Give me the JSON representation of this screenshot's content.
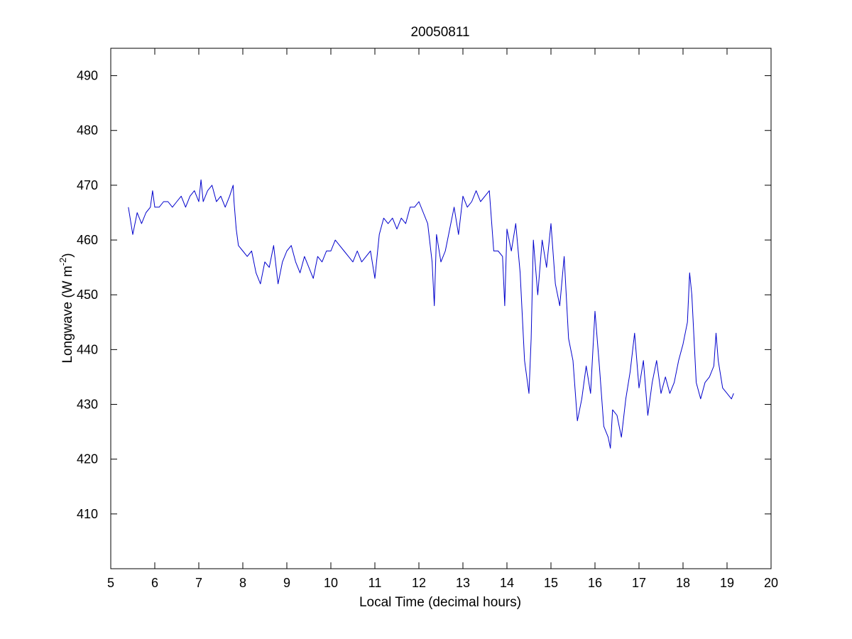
{
  "chart_data": {
    "type": "line",
    "title": "20050811",
    "xlabel": "Local Time (decimal hours)",
    "ylabel": {
      "text": "Longwave (W m",
      "superscript": "-2",
      "suffix": ")"
    },
    "xlim": [
      5,
      20
    ],
    "ylim": [
      400,
      495
    ],
    "xticks": [
      5,
      6,
      7,
      8,
      9,
      10,
      11,
      12,
      13,
      14,
      15,
      16,
      17,
      18,
      19,
      20
    ],
    "yticks": [
      410,
      420,
      430,
      440,
      450,
      460,
      470,
      480,
      490
    ],
    "grid": false,
    "legend": "none",
    "series": [
      {
        "color": "#0000cc",
        "x": [
          5.4,
          5.5,
          5.6,
          5.7,
          5.8,
          5.9,
          5.95,
          6.0,
          6.1,
          6.2,
          6.3,
          6.4,
          6.5,
          6.6,
          6.7,
          6.8,
          6.9,
          7.0,
          7.05,
          7.1,
          7.2,
          7.3,
          7.4,
          7.5,
          7.6,
          7.7,
          7.78,
          7.8,
          7.85,
          7.9,
          8.0,
          8.1,
          8.2,
          8.3,
          8.4,
          8.5,
          8.6,
          8.7,
          8.8,
          8.9,
          9.0,
          9.1,
          9.2,
          9.3,
          9.4,
          9.5,
          9.6,
          9.7,
          9.8,
          9.9,
          10.0,
          10.1,
          10.2,
          10.3,
          10.4,
          10.5,
          10.6,
          10.7,
          10.8,
          10.9,
          11.0,
          11.1,
          11.2,
          11.3,
          11.4,
          11.5,
          11.6,
          11.7,
          11.8,
          11.9,
          12.0,
          12.1,
          12.2,
          12.3,
          12.35,
          12.4,
          12.5,
          12.6,
          12.7,
          12.8,
          12.9,
          13.0,
          13.1,
          13.2,
          13.3,
          13.4,
          13.5,
          13.6,
          13.7,
          13.8,
          13.9,
          13.95,
          14.0,
          14.1,
          14.2,
          14.3,
          14.4,
          14.5,
          14.55,
          14.6,
          14.7,
          14.8,
          14.9,
          15.0,
          15.1,
          15.2,
          15.3,
          15.4,
          15.5,
          15.6,
          15.7,
          15.8,
          15.9,
          16.0,
          16.1,
          16.2,
          16.3,
          16.35,
          16.4,
          16.5,
          16.6,
          16.7,
          16.8,
          16.9,
          17.0,
          17.1,
          17.2,
          17.3,
          17.4,
          17.5,
          17.6,
          17.7,
          17.8,
          17.9,
          18.0,
          18.1,
          18.15,
          18.2,
          18.3,
          18.4,
          18.5,
          18.6,
          18.7,
          18.75,
          18.8,
          18.9,
          19.0,
          19.1,
          19.15
        ],
        "y": [
          466,
          461,
          465,
          463,
          465,
          466,
          469,
          466,
          466,
          467,
          467,
          466,
          467,
          468,
          466,
          468,
          469,
          467,
          471,
          467,
          469,
          470,
          467,
          468,
          466,
          468,
          470,
          467,
          462,
          459,
          458,
          457,
          458,
          454,
          452,
          456,
          455,
          459,
          452,
          456,
          458,
          459,
          456,
          454,
          457,
          455,
          453,
          457,
          456,
          458,
          458,
          460,
          459,
          458,
          457,
          456,
          458,
          456,
          457,
          458,
          453,
          461,
          464,
          463,
          464,
          462,
          464,
          463,
          466,
          466,
          467,
          465,
          463,
          456,
          448,
          461,
          456,
          458,
          462,
          466,
          461,
          468,
          466,
          467,
          469,
          467,
          468,
          469,
          458,
          458,
          457,
          448,
          462,
          458,
          463,
          454,
          438,
          432,
          442,
          460,
          450,
          460,
          455,
          463,
          452,
          448,
          457,
          442,
          438,
          427,
          431,
          437,
          432,
          447,
          437,
          426,
          424,
          422,
          429,
          428,
          424,
          431,
          436,
          443,
          433,
          438,
          428,
          434,
          438,
          432,
          435,
          432,
          434,
          438,
          441,
          445,
          454,
          450,
          434,
          431,
          434,
          435,
          437,
          443,
          438,
          433,
          432,
          431,
          432
        ]
      }
    ]
  }
}
